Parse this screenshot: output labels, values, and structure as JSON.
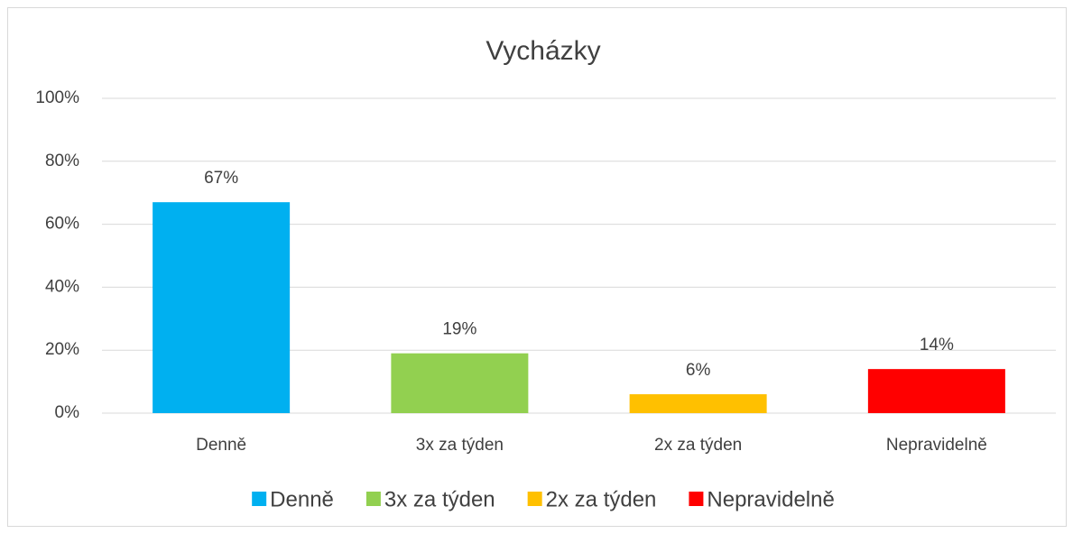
{
  "chart_data": {
    "type": "bar",
    "title": "Vycházky",
    "categories": [
      "Denně",
      "3x za týden",
      "2x za týden",
      "Nepravidelně"
    ],
    "values": [
      67,
      19,
      6,
      14
    ],
    "value_labels": [
      "67%",
      "19%",
      "6%",
      "14%"
    ],
    "colors": [
      "#00b0f0",
      "#92d050",
      "#ffc000",
      "#ff0000"
    ],
    "ylim": [
      0,
      100
    ],
    "yticks": [
      {
        "value": 0,
        "label": "0%"
      },
      {
        "value": 20,
        "label": "20%"
      },
      {
        "value": 40,
        "label": "40%"
      },
      {
        "value": 60,
        "label": "60%"
      },
      {
        "value": 80,
        "label": "80%"
      },
      {
        "value": 100,
        "label": "100%"
      }
    ],
    "grid": true,
    "legend": "bottom"
  }
}
